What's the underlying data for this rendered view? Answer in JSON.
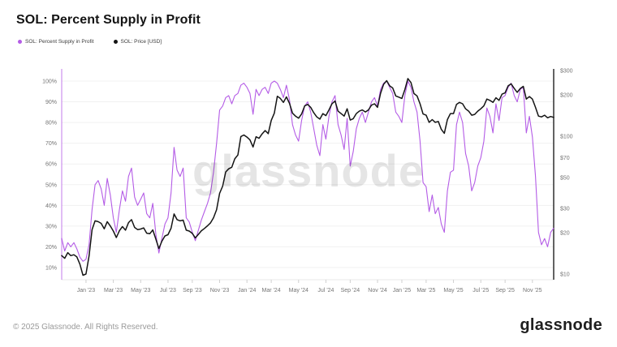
{
  "header": {
    "title": "SOL: Percent Supply in Profit"
  },
  "legend": [
    {
      "label": "SOL: Percent Supply in Profit",
      "color": "#b45ce6"
    },
    {
      "label": "SOL: Price [USD]",
      "color": "#141414"
    }
  ],
  "watermark": "glassnode",
  "footer": {
    "copyright": "© 2025 Glassnode. All Rights Reserved.",
    "logo": "glassnode"
  },
  "chart_data": {
    "type": "line",
    "title": "SOL: Percent Supply in Profit",
    "x_start": "Nov 2022",
    "x_end": "Dec 2025",
    "points_interval": "weekly",
    "grid": "horizontal",
    "legend_position": "top-left",
    "x_ticks": [
      {
        "label": "Jan '23",
        "week": 8
      },
      {
        "label": "Mar '23",
        "week": 17
      },
      {
        "label": "May '23",
        "week": 26
      },
      {
        "label": "Jul '23",
        "week": 35
      },
      {
        "label": "Sep '23",
        "week": 43
      },
      {
        "label": "Nov '23",
        "week": 52
      },
      {
        "label": "Jan '24",
        "week": 61
      },
      {
        "label": "Mar '24",
        "week": 69
      },
      {
        "label": "May '24",
        "week": 78
      },
      {
        "label": "Jul '24",
        "week": 87
      },
      {
        "label": "Sep '24",
        "week": 95
      },
      {
        "label": "Nov '24",
        "week": 104
      },
      {
        "label": "Jan '25",
        "week": 112
      },
      {
        "label": "Mar '25",
        "week": 120
      },
      {
        "label": "May '25",
        "week": 129
      },
      {
        "label": "Jul '25",
        "week": 138
      },
      {
        "label": "Sep '25",
        "week": 146
      },
      {
        "label": "Nov '25",
        "week": 155
      }
    ],
    "left_axis": {
      "name": "SOL: Percent Supply in Profit",
      "unit": "%",
      "scale": "linear",
      "color": "#b45ce6",
      "tick_values": [
        10,
        20,
        30,
        40,
        50,
        60,
        70,
        80,
        90,
        100
      ],
      "tick_labels": [
        "10%",
        "20%",
        "30%",
        "40%",
        "50%",
        "60%",
        "70%",
        "80%",
        "90%",
        "100%"
      ]
    },
    "right_axis": {
      "name": "SOL: Price [USD]",
      "unit": "USD",
      "scale": "log",
      "color": "#3c3c3c",
      "tick_values": [
        10,
        20,
        30,
        50,
        70,
        100,
        200,
        300
      ],
      "tick_labels": [
        "$10",
        "$20",
        "$30",
        "$50",
        "$70",
        "$100",
        "$200",
        "$300"
      ]
    },
    "series": [
      {
        "name": "SOL: Percent Supply in Profit",
        "axis": "left",
        "color": "#b45ce6",
        "values": [
          24,
          18,
          22,
          20,
          22,
          19,
          15,
          13,
          14,
          21,
          38,
          50,
          52,
          48,
          40,
          53,
          45,
          34,
          27,
          38,
          47,
          42,
          54,
          58,
          44,
          40,
          43,
          46,
          36,
          34,
          41,
          26,
          17,
          24,
          31,
          34,
          46,
          68,
          57,
          54,
          58,
          34,
          32,
          27,
          23,
          28,
          33,
          37,
          41,
          46,
          56,
          70,
          86,
          88,
          92,
          93,
          89,
          93,
          94,
          98,
          99,
          97,
          94,
          84,
          96,
          93,
          96,
          97,
          94,
          99,
          100,
          99,
          96,
          92,
          98,
          91,
          79,
          74,
          71,
          81,
          88,
          90,
          85,
          77,
          69,
          64,
          79,
          72,
          83,
          90,
          93,
          79,
          74,
          67,
          82,
          59,
          66,
          77,
          82,
          85,
          80,
          85,
          90,
          92,
          88,
          96,
          99,
          100,
          97,
          94,
          85,
          83,
          80,
          93,
          100,
          97,
          90,
          85,
          71,
          51,
          49,
          37,
          45,
          36,
          39,
          31,
          27,
          47,
          56,
          57,
          79,
          85,
          80,
          65,
          59,
          47,
          51,
          59,
          63,
          71,
          87,
          83,
          75,
          89,
          81,
          92,
          93,
          97,
          99,
          93,
          90,
          96,
          97,
          75,
          83,
          73,
          54,
          27,
          21,
          24,
          20,
          27,
          29
        ]
      },
      {
        "name": "SOL: Price [USD]",
        "axis": "right",
        "color": "#141414",
        "values": [
          13.6,
          13.0,
          14.3,
          13.6,
          13.8,
          13.3,
          11.8,
          9.8,
          10.0,
          13.5,
          21.0,
          24.3,
          24.0,
          23.3,
          21.3,
          24.0,
          22.3,
          20.5,
          18.4,
          20.6,
          22.1,
          20.8,
          23.6,
          24.8,
          21.8,
          21.0,
          21.2,
          21.6,
          19.8,
          19.6,
          20.9,
          17.9,
          15.3,
          17.3,
          18.9,
          19.3,
          21.5,
          27.3,
          24.8,
          24.3,
          24.6,
          20.8,
          20.5,
          19.7,
          18.3,
          19.4,
          20.6,
          21.4,
          22.4,
          23.5,
          25.6,
          29.3,
          38.5,
          43.5,
          55.0,
          58.0,
          59.5,
          68.5,
          73.0,
          99.5,
          102.0,
          98.5,
          94.0,
          83.5,
          99.0,
          96.5,
          104,
          110,
          104.5,
          130,
          147,
          195,
          188,
          176,
          193,
          173,
          147,
          140,
          135,
          145,
          166,
          170,
          162,
          148,
          138,
          133,
          146,
          141,
          155,
          172,
          180,
          152,
          146,
          140,
          158,
          131,
          134,
          146,
          152,
          155,
          150,
          155,
          168,
          172,
          162,
          205,
          238,
          253,
          232,
          224,
          196,
          192,
          188,
          218,
          262,
          245,
          204,
          196,
          172,
          145,
          142,
          126,
          132,
          126,
          128,
          112,
          105,
          132,
          146,
          146,
          170,
          176,
          172,
          158,
          152,
          142,
          144,
          152,
          158,
          166,
          186,
          182,
          176,
          190,
          182,
          202,
          206,
          232,
          240,
          222,
          208,
          222,
          230,
          186,
          194,
          186,
          162,
          140,
          138,
          142,
          136,
          139,
          137
        ]
      }
    ]
  }
}
